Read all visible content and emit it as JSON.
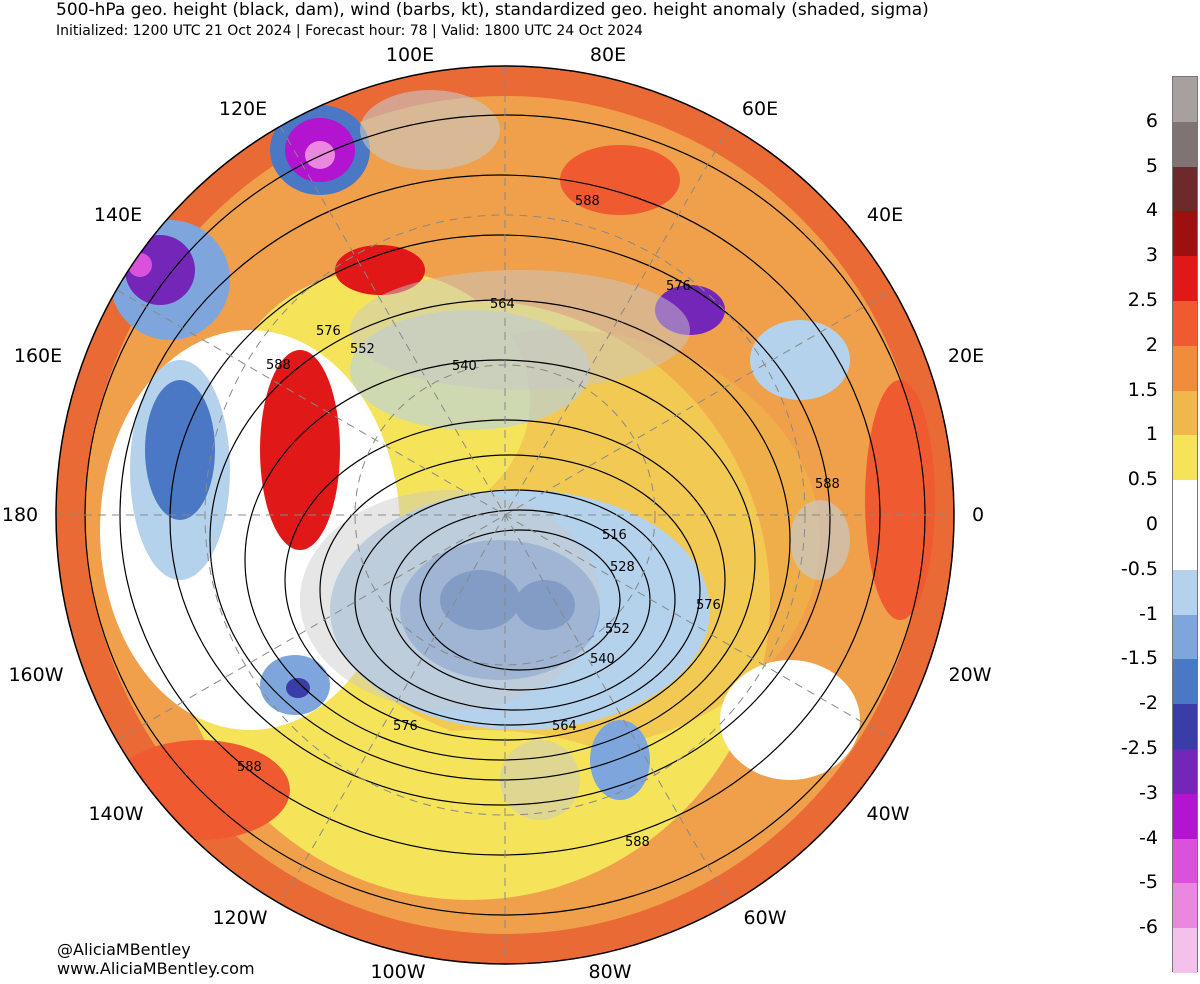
{
  "header": {
    "title": "500-hPa geo. height (black, dam), wind (barbs, kt), standardized geo. height anomaly (shaded, sigma)",
    "subtitle": "Initialized: 1200 UTC 21 Oct 2024 | Forecast hour: 78 | Valid: 1800 UTC 24 Oct 2024"
  },
  "map": {
    "projection": "north polar stereographic",
    "longitude_labels": [
      "100E",
      "80E",
      "60E",
      "120E",
      "140E",
      "40E",
      "160E",
      "20E",
      "180",
      "0",
      "160W",
      "20W",
      "140W",
      "40W",
      "120W",
      "60W",
      "100W",
      "80W"
    ],
    "contour_labels": [
      "588",
      "576",
      "564",
      "576",
      "552",
      "540",
      "588",
      "588",
      "516",
      "528",
      "576",
      "552",
      "540",
      "564",
      "576",
      "588",
      "588"
    ]
  },
  "legend": {
    "ticks": [
      "6",
      "5",
      "4",
      "3",
      "2.5",
      "2",
      "1.5",
      "1",
      "0.5",
      "0",
      "-0.5",
      "-1",
      "-1.5",
      "-2",
      "-2.5",
      "-3",
      "-4",
      "-5",
      "-6"
    ],
    "colors": [
      "#a89f9f",
      "#7f7373",
      "#6e2a2a",
      "#9e1010",
      "#e01818",
      "#f05a30",
      "#f08c3c",
      "#f0b84c",
      "#f5e45a",
      "#ffffff",
      "#ffffff",
      "#b4d2ec",
      "#7ea6dc",
      "#4a78c4",
      "#3a3ca8",
      "#7426b8",
      "#b214d0",
      "#da52dc",
      "#ea88e0",
      "#f2c2ec"
    ]
  },
  "credits": {
    "handle": "@AliciaMBentley",
    "website": "www.AliciaMBentley.com"
  }
}
